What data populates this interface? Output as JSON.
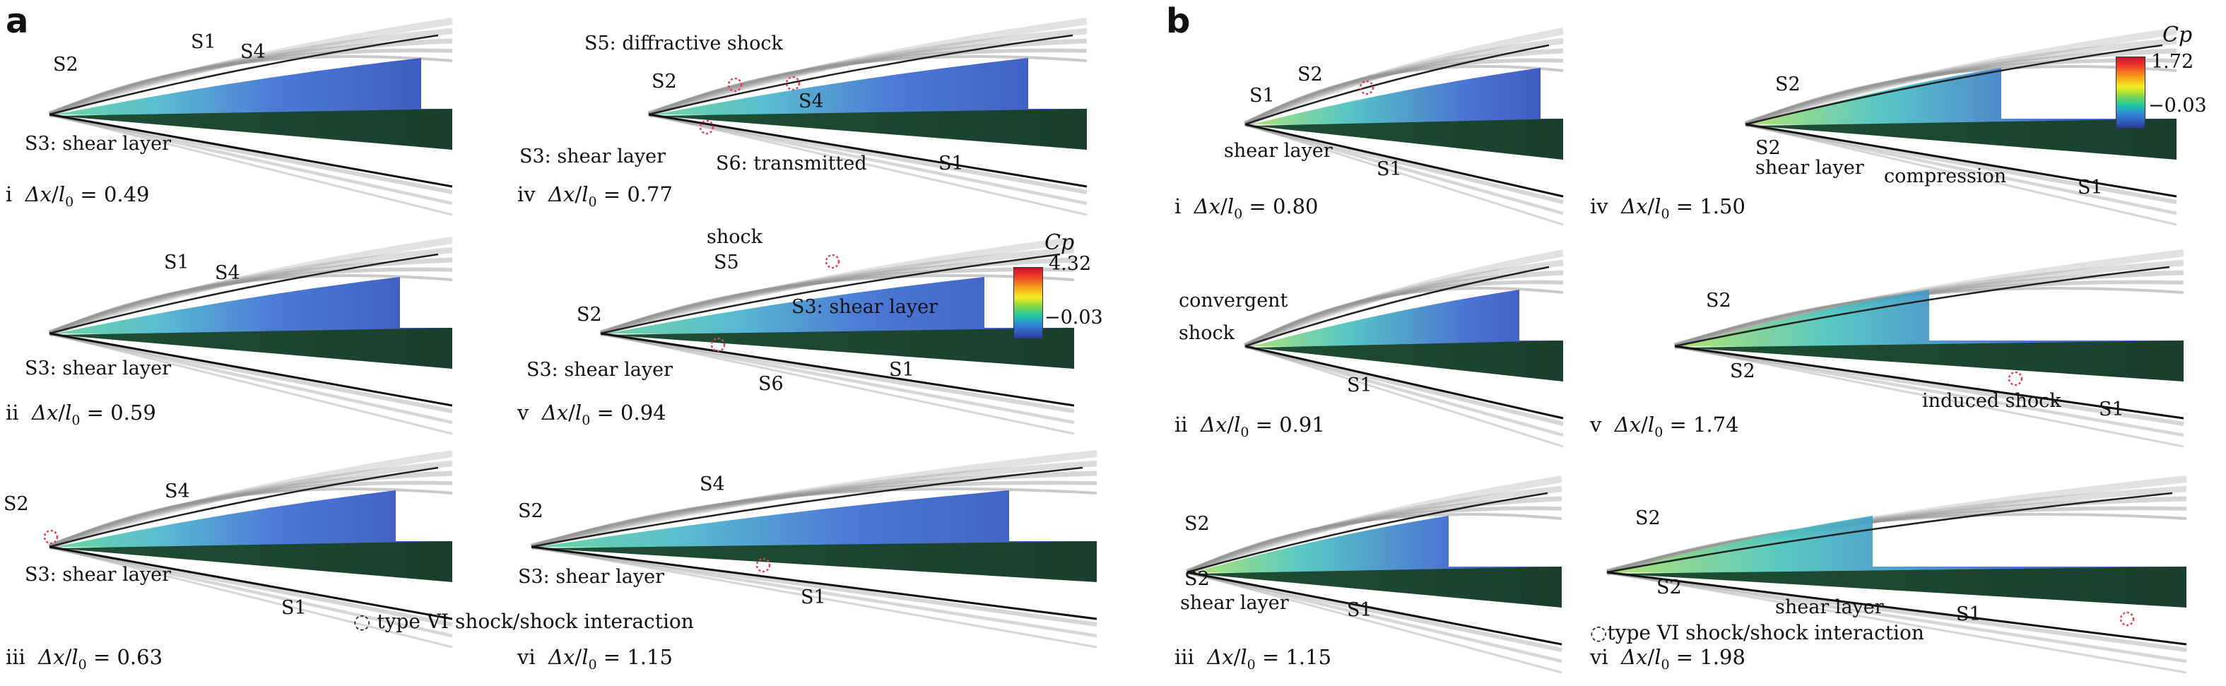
{
  "panels": [
    {
      "letter": "a",
      "colorbar": {
        "title": "Cp",
        "max": "4.32",
        "min": "−0.03"
      },
      "footnote": "◌ type VI shock/shock interaction",
      "subplots": [
        {
          "roman": "i",
          "value": "0.49",
          "labels": [
            "S2",
            "S1",
            "S4",
            "S3: shear layer"
          ]
        },
        {
          "roman": "iv",
          "value": "0.77",
          "labels": [
            "S5: diffractive shock",
            "S2",
            "S4",
            "S3: shear layer",
            "S6: transmitted",
            "S1"
          ]
        },
        {
          "roman": "ii",
          "value": "0.59",
          "labels": [
            "S1",
            "S4",
            "S3: shear layer"
          ]
        },
        {
          "roman": "v",
          "value": "0.94",
          "labels": [
            "shock",
            "S5",
            "S2",
            "S3: shear layer",
            "S3: shear layer",
            "S6",
            "S1"
          ]
        },
        {
          "roman": "iii",
          "value": "0.63",
          "labels": [
            "S2",
            "S4",
            "S3: shear layer",
            "S1"
          ]
        },
        {
          "roman": "vi",
          "value": "1.15",
          "labels": [
            "S2",
            "S4",
            "S3: shear layer",
            "S1"
          ]
        }
      ]
    },
    {
      "letter": "b",
      "colorbar": {
        "title": "Cp",
        "max": "1.72",
        "min": "−0.03"
      },
      "footnote": "◌type VI shock/shock interaction",
      "subplots": [
        {
          "roman": "i",
          "value": "0.80",
          "labels": [
            "S2",
            "S1",
            "shear layer",
            "S1"
          ]
        },
        {
          "roman": "iv",
          "value": "1.50",
          "labels": [
            "S2",
            "S2",
            "shear layer",
            "compression",
            "S1"
          ]
        },
        {
          "roman": "ii",
          "value": "0.91",
          "labels": [
            "convergent",
            "shock",
            "S1"
          ]
        },
        {
          "roman": "v",
          "value": "1.74",
          "labels": [
            "S2",
            "S2",
            "induced shock",
            "S1"
          ]
        },
        {
          "roman": "iii",
          "value": "1.15",
          "labels": [
            "S2",
            "S2",
            "shear layer",
            "S1"
          ]
        },
        {
          "roman": "vi",
          "value": "1.98",
          "labels": [
            "S2",
            "S2",
            "shear layer",
            "S1"
          ]
        }
      ]
    }
  ],
  "caption_symbol": "Δx/l₀",
  "colors": {
    "shock_gray": "#8a8a8a",
    "field_blue": "#3b59c6",
    "field_cyan": "#46c1c6",
    "field_green": "#1f5a3a",
    "interaction_marker": "#e0405a"
  }
}
